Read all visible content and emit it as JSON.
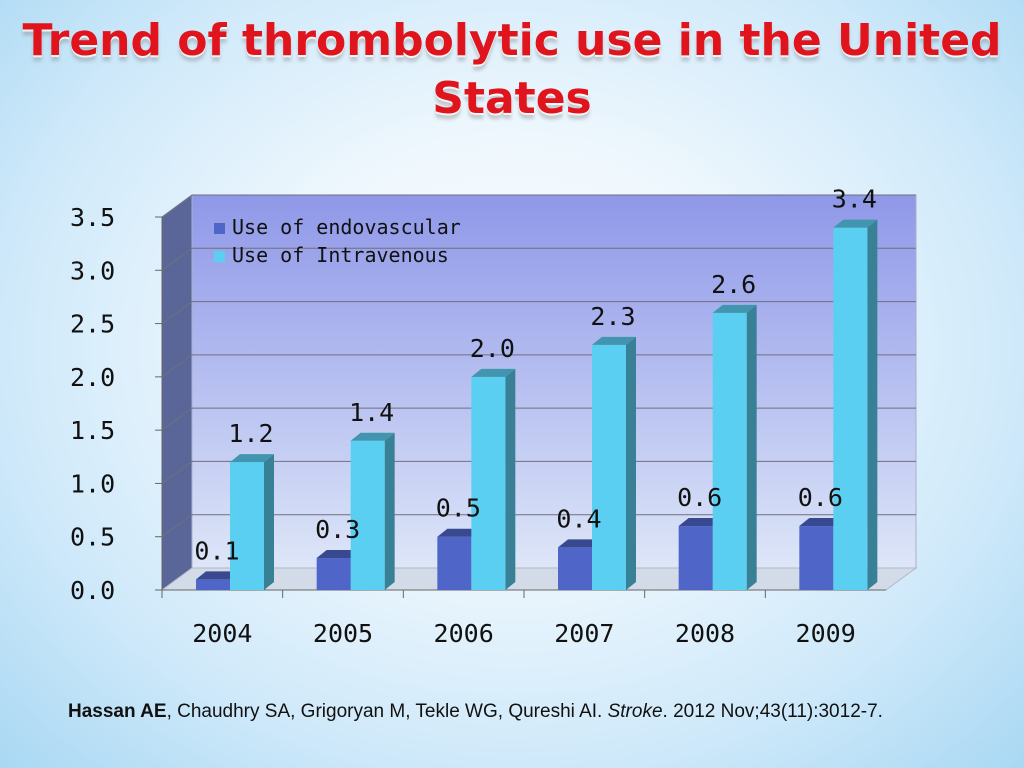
{
  "title": "Trend of thrombolytic use in the United States",
  "citation": {
    "lead_author": "Hassan AE",
    "authors_rest": ", Chaudhry SA, Grigoryan M, Tekle WG, Qureshi AI. ",
    "journal": "Stroke",
    "details": ". 2012 Nov;43(11):3012-7."
  },
  "chart_data": {
    "type": "bar",
    "style": "3d-clustered-column",
    "title": "",
    "xlabel": "",
    "ylabel": "",
    "categories": [
      "2004",
      "2005",
      "2006",
      "2007",
      "2008",
      "2009"
    ],
    "series": [
      {
        "name": "Use of endovascular",
        "values": [
          0.1,
          0.3,
          0.5,
          0.4,
          0.6,
          0.6
        ],
        "labels": [
          "0.1",
          "0.3",
          "0.5",
          "0.4",
          "0.6",
          "0.6"
        ],
        "color": "#4f66c8"
      },
      {
        "name": "Use of Intravenous",
        "values": [
          1.2,
          1.4,
          2.0,
          2.3,
          2.6,
          3.4
        ],
        "labels": [
          "1.2",
          "1.4",
          "2.0",
          "2.3",
          "2.6",
          "3.4"
        ],
        "color": "#5bcff2"
      }
    ],
    "ylim": [
      0,
      3.5
    ],
    "yticks": [
      "0.0",
      "0.5",
      "1.0",
      "1.5",
      "2.0",
      "2.5",
      "3.0",
      "3.5"
    ],
    "grid": true,
    "legend_position": "top-left"
  }
}
